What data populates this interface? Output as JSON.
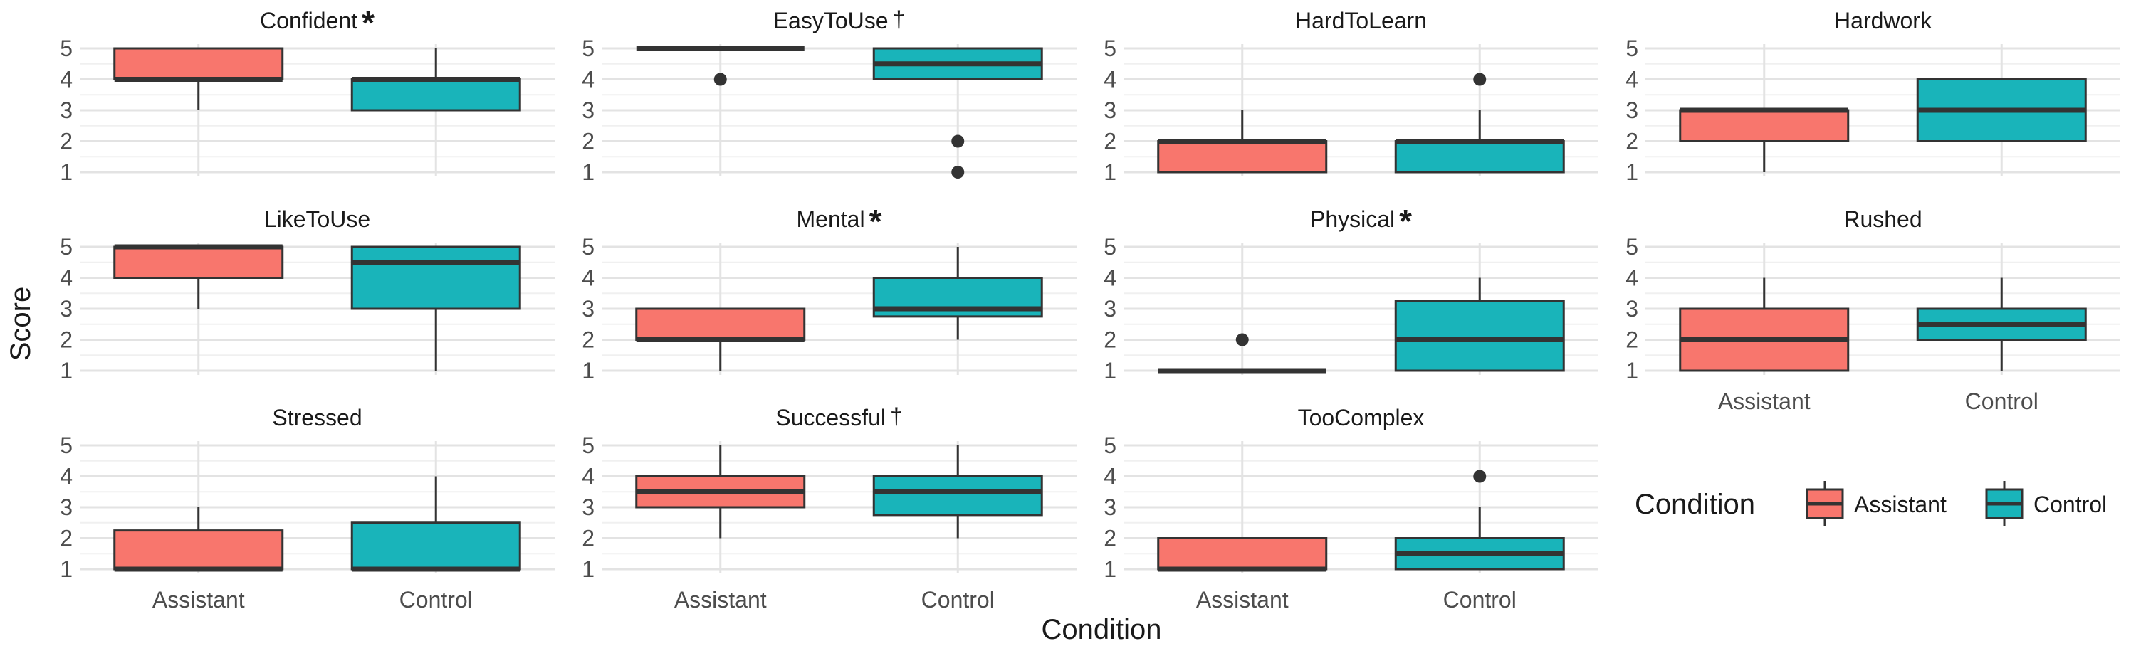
{
  "chart_data": {
    "type": "boxplot",
    "xlabel": "Condition",
    "ylabel": "Score",
    "categories": [
      "Assistant",
      "Control"
    ],
    "ylim": [
      1,
      5
    ],
    "yticks": [
      1,
      2,
      3,
      4,
      5
    ],
    "grid": true,
    "colors": {
      "Assistant": "#F8766D",
      "Control": "#19B4BA"
    },
    "legend": {
      "title": "Condition",
      "position": "bottom-right",
      "entries": [
        "Assistant",
        "Control"
      ]
    },
    "panels": [
      {
        "title": "Confident",
        "marker": "*",
        "boxes": [
          {
            "group": "Assistant",
            "min": 3,
            "q1": 4,
            "median": 4,
            "q3": 5,
            "max": 5,
            "outliers": []
          },
          {
            "group": "Control",
            "min": 3,
            "q1": 3,
            "median": 4,
            "q3": 4,
            "max": 5,
            "outliers": []
          }
        ]
      },
      {
        "title": "EasyToUse",
        "marker": "†",
        "boxes": [
          {
            "group": "Assistant",
            "min": 5,
            "q1": 5,
            "median": 5,
            "q3": 5,
            "max": 5,
            "outliers": [
              4
            ]
          },
          {
            "group": "Control",
            "min": 4,
            "q1": 4,
            "median": 4.5,
            "q3": 5,
            "max": 5,
            "outliers": [
              2,
              1
            ]
          }
        ]
      },
      {
        "title": "HardToLearn",
        "marker": "",
        "boxes": [
          {
            "group": "Assistant",
            "min": 1,
            "q1": 1,
            "median": 2,
            "q3": 2,
            "max": 3,
            "outliers": []
          },
          {
            "group": "Control",
            "min": 1,
            "q1": 1,
            "median": 2,
            "q3": 2,
            "max": 3,
            "outliers": [
              4
            ]
          }
        ]
      },
      {
        "title": "Hardwork",
        "marker": "",
        "boxes": [
          {
            "group": "Assistant",
            "min": 1,
            "q1": 2,
            "median": 3,
            "q3": 3,
            "max": 3,
            "outliers": []
          },
          {
            "group": "Control",
            "min": 2,
            "q1": 2,
            "median": 3,
            "q3": 4,
            "max": 4,
            "outliers": []
          }
        ]
      },
      {
        "title": "LikeToUse",
        "marker": "",
        "boxes": [
          {
            "group": "Assistant",
            "min": 3,
            "q1": 4,
            "median": 5,
            "q3": 5,
            "max": 5,
            "outliers": []
          },
          {
            "group": "Control",
            "min": 1,
            "q1": 3,
            "median": 4.5,
            "q3": 5,
            "max": 5,
            "outliers": []
          }
        ]
      },
      {
        "title": "Mental",
        "marker": "*",
        "boxes": [
          {
            "group": "Assistant",
            "min": 1,
            "q1": 2,
            "median": 2,
            "q3": 3,
            "max": 3,
            "outliers": []
          },
          {
            "group": "Control",
            "min": 2,
            "q1": 2.75,
            "median": 3,
            "q3": 4,
            "max": 5,
            "outliers": []
          }
        ]
      },
      {
        "title": "Physical",
        "marker": "*",
        "boxes": [
          {
            "group": "Assistant",
            "min": 1,
            "q1": 1,
            "median": 1,
            "q3": 1,
            "max": 1,
            "outliers": [
              2
            ]
          },
          {
            "group": "Control",
            "min": 1,
            "q1": 1,
            "median": 2,
            "q3": 3.25,
            "max": 4,
            "outliers": []
          }
        ]
      },
      {
        "title": "Rushed",
        "marker": "",
        "boxes": [
          {
            "group": "Assistant",
            "min": 1,
            "q1": 1,
            "median": 2,
            "q3": 3,
            "max": 4,
            "outliers": []
          },
          {
            "group": "Control",
            "min": 1,
            "q1": 2,
            "median": 2.5,
            "q3": 3,
            "max": 4,
            "outliers": []
          }
        ]
      },
      {
        "title": "Stressed",
        "marker": "",
        "boxes": [
          {
            "group": "Assistant",
            "min": 1,
            "q1": 1,
            "median": 1,
            "q3": 2.25,
            "max": 3,
            "outliers": []
          },
          {
            "group": "Control",
            "min": 1,
            "q1": 1,
            "median": 1,
            "q3": 2.5,
            "max": 4,
            "outliers": []
          }
        ]
      },
      {
        "title": "Successful",
        "marker": "†",
        "boxes": [
          {
            "group": "Assistant",
            "min": 2,
            "q1": 3,
            "median": 3.5,
            "q3": 4,
            "max": 5,
            "outliers": []
          },
          {
            "group": "Control",
            "min": 2,
            "q1": 2.75,
            "median": 3.5,
            "q3": 4,
            "max": 5,
            "outliers": []
          }
        ]
      },
      {
        "title": "TooComplex",
        "marker": "",
        "boxes": [
          {
            "group": "Assistant",
            "min": 1,
            "q1": 1,
            "median": 1,
            "q3": 2,
            "max": 2,
            "outliers": []
          },
          {
            "group": "Control",
            "min": 1,
            "q1": 1,
            "median": 1.5,
            "q3": 2,
            "max": 3,
            "outliers": [
              4
            ]
          }
        ]
      }
    ]
  }
}
